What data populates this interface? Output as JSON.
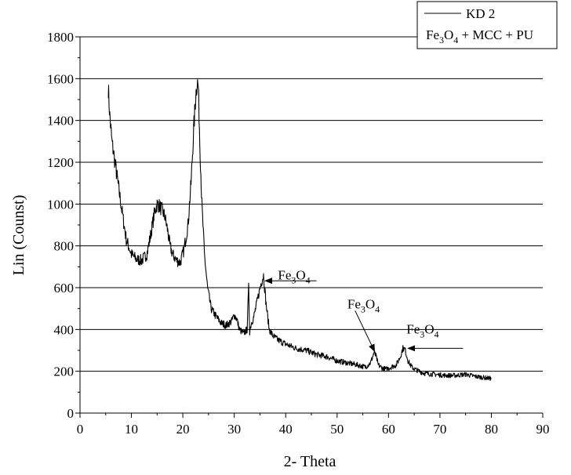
{
  "chart_data": {
    "type": "line",
    "title": "",
    "xlabel": "2- Theta",
    "ylabel": "Lin (Counst)",
    "xlim": [
      0,
      90
    ],
    "ylim": [
      0,
      1800
    ],
    "x_ticks": [
      0,
      10,
      20,
      30,
      40,
      50,
      60,
      70,
      80,
      90
    ],
    "y_ticks": [
      0,
      200,
      400,
      600,
      800,
      1000,
      1200,
      1400,
      1600,
      1800
    ],
    "grid": "horizontal",
    "legend_position": "top-right",
    "legend": [
      {
        "label": "KD 2"
      },
      {
        "label_parts": [
          "Fe",
          "3",
          "O",
          "4",
          " + MCC + PU"
        ]
      }
    ],
    "colors": {
      "line": "#000000",
      "grid": "#000000",
      "background": "#ffffff"
    },
    "series": [
      {
        "name": "KD 2",
        "x": [
          5.5,
          5.8,
          6.2,
          6.8,
          7.5,
          8.2,
          9.0,
          10.0,
          11.0,
          12.0,
          13.0,
          13.8,
          14.5,
          15.0,
          15.5,
          16.0,
          16.5,
          17.0,
          17.5,
          18.0,
          18.8,
          19.5,
          20.2,
          21.0,
          21.6,
          22.1,
          22.5,
          22.8,
          23.0,
          23.3,
          23.7,
          24.2,
          24.8,
          25.5,
          26.5,
          27.5,
          28.5,
          29.5,
          30.0,
          30.5,
          31.0,
          31.8,
          32.5,
          32.8,
          33.0,
          33.3,
          33.8,
          34.5,
          35.2,
          35.7,
          36.2,
          36.8,
          37.5,
          38.5,
          40.0,
          42.0,
          44.0,
          46.0,
          48.0,
          50.0,
          52.0,
          54.0,
          55.5,
          56.5,
          57.2,
          57.6,
          58.0,
          58.8,
          59.5,
          60.5,
          61.5,
          62.3,
          62.8,
          63.2,
          63.8,
          64.5,
          65.5,
          67.0,
          69.0,
          71.0,
          73.0,
          75.0,
          77.0,
          78.5,
          80.0
        ],
        "y": [
          1560,
          1420,
          1300,
          1200,
          1080,
          960,
          830,
          760,
          735,
          730,
          760,
          860,
          960,
          1000,
          990,
          970,
          940,
          880,
          800,
          760,
          730,
          720,
          780,
          900,
          1100,
          1350,
          1520,
          1590,
          1560,
          1300,
          1000,
          760,
          600,
          500,
          460,
          430,
          420,
          440,
          470,
          450,
          400,
          380,
          400,
          600,
          390,
          430,
          460,
          540,
          620,
          660,
          520,
          400,
          370,
          350,
          330,
          310,
          300,
          280,
          270,
          250,
          240,
          230,
          220,
          240,
          290,
          270,
          230,
          215,
          210,
          220,
          230,
          270,
          310,
          305,
          250,
          220,
          205,
          190,
          185,
          180,
          180,
          185,
          175,
          170,
          165
        ]
      }
    ],
    "annotations": [
      {
        "text_parts": [
          "Fe",
          "3",
          "O",
          "4"
        ],
        "x": 38.5,
        "y": 640,
        "arrow_from": [
          46,
          633
        ],
        "arrow_to": [
          36,
          633
        ]
      },
      {
        "text_parts": [
          "Fe",
          "3",
          "O",
          "4"
        ],
        "x": 52.0,
        "y": 500,
        "arrow_from": [
          53.5,
          490
        ],
        "arrow_to": [
          57.3,
          295
        ]
      },
      {
        "text_parts": [
          "Fe",
          "3",
          "O",
          "4"
        ],
        "x": 63.5,
        "y": 380,
        "arrow_from": [
          74.5,
          310
        ],
        "arrow_to": [
          63.8,
          310
        ]
      }
    ]
  }
}
